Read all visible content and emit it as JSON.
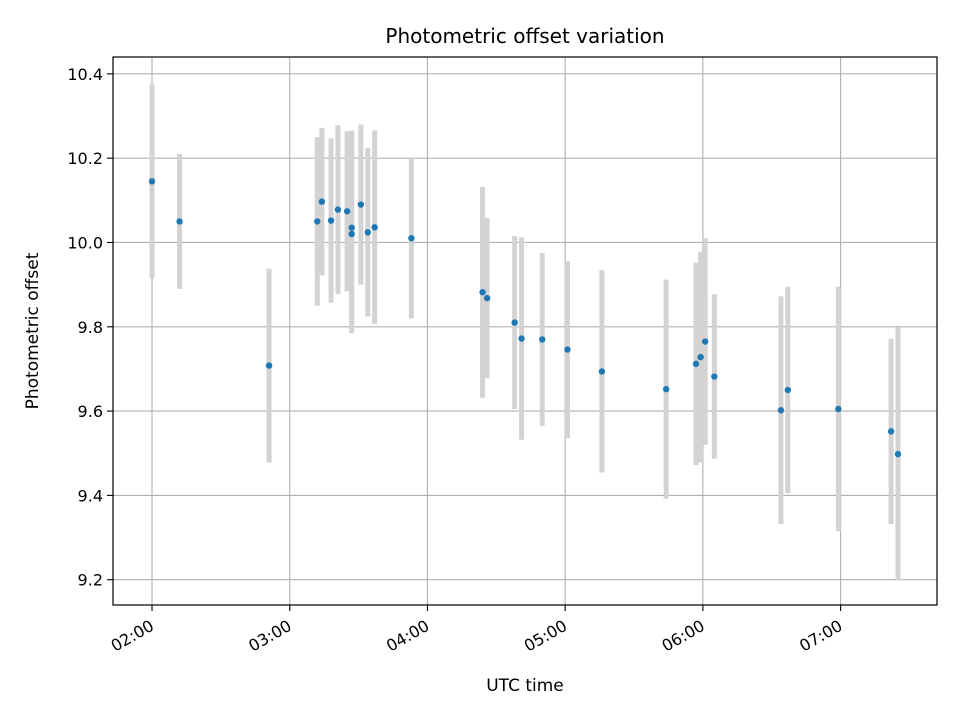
{
  "chart_data": {
    "type": "scatter",
    "title": "Photometric offset variation",
    "xlabel": "UTC time",
    "ylabel": "Photometric offset",
    "x_ticks": [
      "02:00",
      "03:00",
      "04:00",
      "05:00",
      "06:00",
      "07:00"
    ],
    "y_ticks": [
      "9.2",
      "9.4",
      "9.6",
      "9.8",
      "10.0",
      "10.2",
      "10.4"
    ],
    "xlim": [
      "01:43",
      "07:42"
    ],
    "ylim": [
      9.14,
      10.44
    ],
    "grid": true,
    "colors": {
      "point": "#1f77b4",
      "errorbar": "#d3d3d3",
      "grid": "#b0b0b0"
    },
    "points": [
      {
        "t": "02:00",
        "y": 10.145,
        "err": 0.23
      },
      {
        "t": "02:12",
        "y": 10.05,
        "err": 0.16
      },
      {
        "t": "02:51",
        "y": 9.708,
        "err": 0.23
      },
      {
        "t": "03:12",
        "y": 10.05,
        "err": 0.2
      },
      {
        "t": "03:14",
        "y": 10.097,
        "err": 0.175
      },
      {
        "t": "03:18",
        "y": 10.052,
        "err": 0.195
      },
      {
        "t": "03:21",
        "y": 10.078,
        "err": 0.2
      },
      {
        "t": "03:25",
        "y": 10.074,
        "err": 0.19
      },
      {
        "t": "03:27",
        "y": 10.02,
        "err": 0.235
      },
      {
        "t": "03:27",
        "y": 10.035,
        "err": 0.23
      },
      {
        "t": "03:31",
        "y": 10.09,
        "err": 0.19
      },
      {
        "t": "03:34",
        "y": 10.024,
        "err": 0.2
      },
      {
        "t": "03:37",
        "y": 10.036,
        "err": 0.23
      },
      {
        "t": "03:53",
        "y": 10.01,
        "err": 0.19
      },
      {
        "t": "04:24",
        "y": 9.882,
        "err": 0.25
      },
      {
        "t": "04:26",
        "y": 9.868,
        "err": 0.19
      },
      {
        "t": "04:38",
        "y": 9.81,
        "err": 0.205
      },
      {
        "t": "04:41",
        "y": 9.772,
        "err": 0.24
      },
      {
        "t": "04:50",
        "y": 9.77,
        "err": 0.205
      },
      {
        "t": "05:01",
        "y": 9.746,
        "err": 0.21
      },
      {
        "t": "05:16",
        "y": 9.694,
        "err": 0.24
      },
      {
        "t": "05:44",
        "y": 9.652,
        "err": 0.26
      },
      {
        "t": "05:57",
        "y": 9.712,
        "err": 0.24
      },
      {
        "t": "05:59",
        "y": 9.728,
        "err": 0.25
      },
      {
        "t": "06:01",
        "y": 9.765,
        "err": 0.245
      },
      {
        "t": "06:05",
        "y": 9.682,
        "err": 0.195
      },
      {
        "t": "06:34",
        "y": 9.602,
        "err": 0.27
      },
      {
        "t": "06:37",
        "y": 9.65,
        "err": 0.245
      },
      {
        "t": "06:59",
        "y": 9.605,
        "err": 0.29
      },
      {
        "t": "07:22",
        "y": 9.552,
        "err": 0.22
      },
      {
        "t": "07:25",
        "y": 9.498,
        "err": 0.3
      }
    ]
  }
}
